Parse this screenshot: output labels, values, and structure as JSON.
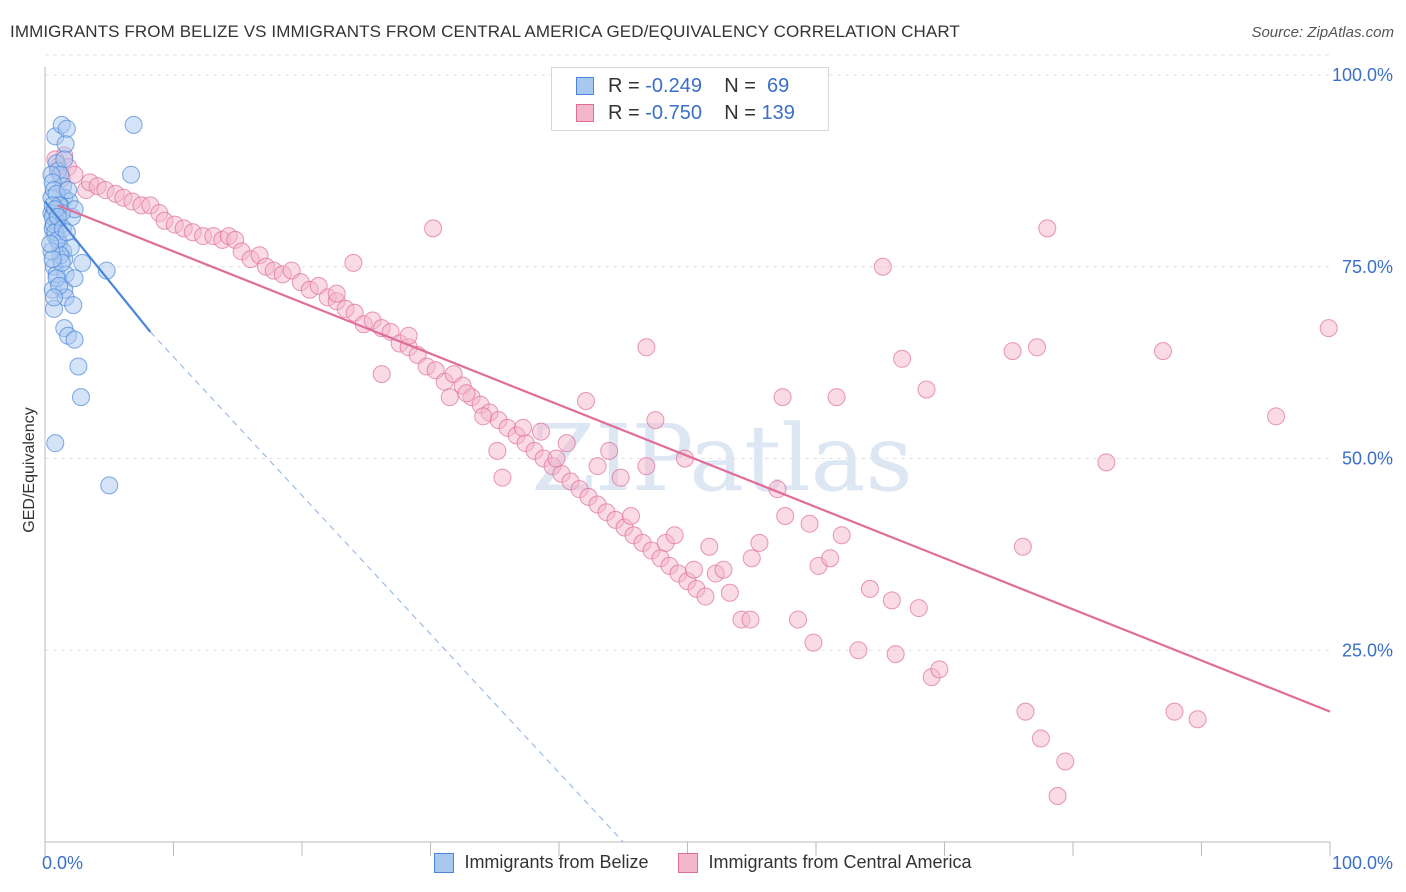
{
  "title": "IMMIGRANTS FROM BELIZE VS IMMIGRANTS FROM CENTRAL AMERICA GED/EQUIVALENCY CORRELATION CHART",
  "source": "Source: ZipAtlas.com",
  "watermark": "ZIPatlas",
  "colors": {
    "blue": "#4a86d8",
    "blue_fill": "#a9c8f0",
    "pink": "#e06c98",
    "pink_fill": "#f4b6cb",
    "tick_text": "#3a6fc8"
  },
  "legend": {
    "rows": [
      {
        "r_label": "R = ",
        "r_value": "-0.249",
        "n_label": "N = ",
        "n_value": "69"
      },
      {
        "r_label": "R = ",
        "r_value": "-0.750",
        "n_label": "N = ",
        "n_value": "139"
      }
    ]
  },
  "chart_data": {
    "type": "scatter",
    "title": "IMMIGRANTS FROM BELIZE VS IMMIGRANTS FROM CENTRAL AMERICA GED/EQUIVALENCY CORRELATION CHART",
    "xlabel": "",
    "ylabel": "GED/Equivalency",
    "xlim": [
      0,
      100
    ],
    "ylim": [
      0,
      100
    ],
    "x_tick_labels": [
      "0.0%",
      "100.0%"
    ],
    "y_ticks": [
      25,
      50,
      75,
      100
    ],
    "y_tick_labels": [
      "25.0%",
      "50.0%",
      "75.0%",
      "100.0%"
    ],
    "legend_position": "bottom",
    "series": [
      {
        "name": "Immigrants from Belize",
        "r": -0.249,
        "n": 69,
        "trend": {
          "x": [
            0,
            8.2
          ],
          "y": [
            83.5,
            66.5
          ],
          "dashed_to": [
            45,
            0
          ]
        },
        "points": [
          [
            0.8,
            92
          ],
          [
            0.9,
            88.5
          ],
          [
            1.0,
            87.5
          ],
          [
            1.3,
            93.5
          ],
          [
            1.6,
            91
          ],
          [
            1.7,
            93
          ],
          [
            1.5,
            89
          ],
          [
            1.2,
            87
          ],
          [
            6.7,
            87
          ],
          [
            6.9,
            93.5
          ],
          [
            1.4,
            85.5
          ],
          [
            1.5,
            84
          ],
          [
            1.9,
            83.5
          ],
          [
            0.5,
            84
          ],
          [
            0.7,
            82
          ],
          [
            0.9,
            81
          ],
          [
            1.0,
            80
          ],
          [
            1.2,
            83
          ],
          [
            0.6,
            80
          ],
          [
            0.8,
            79
          ],
          [
            1.1,
            78
          ],
          [
            1.4,
            77
          ],
          [
            1.5,
            76
          ],
          [
            0.7,
            75
          ],
          [
            0.9,
            74
          ],
          [
            1.6,
            74
          ],
          [
            2.1,
            81.5
          ],
          [
            2.3,
            82.5
          ],
          [
            2.0,
            77.5
          ],
          [
            2.9,
            75.5
          ],
          [
            4.8,
            74.5
          ],
          [
            0.6,
            72
          ],
          [
            1.5,
            72
          ],
          [
            1.6,
            71
          ],
          [
            2.2,
            70
          ],
          [
            0.7,
            69.5
          ],
          [
            2.3,
            73.5
          ],
          [
            1.5,
            67
          ],
          [
            1.8,
            66
          ],
          [
            2.3,
            65.5
          ],
          [
            2.6,
            62
          ],
          [
            2.8,
            58
          ],
          [
            0.8,
            52
          ],
          [
            5.0,
            46.5
          ],
          [
            0.5,
            87
          ],
          [
            0.6,
            86
          ],
          [
            0.7,
            85
          ],
          [
            0.9,
            84.5
          ],
          [
            1.1,
            83
          ],
          [
            0.5,
            82
          ],
          [
            0.6,
            81.5
          ],
          [
            0.7,
            80.5
          ],
          [
            0.8,
            79.5
          ],
          [
            1.0,
            78.5
          ],
          [
            1.2,
            76.5
          ],
          [
            1.3,
            75.5
          ],
          [
            0.5,
            77
          ],
          [
            0.6,
            76
          ],
          [
            0.9,
            73.5
          ],
          [
            1.8,
            85
          ],
          [
            1.3,
            82
          ],
          [
            0.6,
            83
          ],
          [
            0.8,
            82.5
          ],
          [
            1.0,
            81.5
          ],
          [
            1.4,
            80
          ],
          [
            1.7,
            79.5
          ],
          [
            0.4,
            78
          ],
          [
            1.1,
            72.5
          ],
          [
            0.7,
            71
          ]
        ]
      },
      {
        "name": "Immigrants from Central America",
        "r": -0.75,
        "n": 139,
        "trend": {
          "x": [
            1,
            100
          ],
          "y": [
            83,
            17
          ]
        },
        "points": [
          [
            1.0,
            88
          ],
          [
            1.5,
            89.5
          ],
          [
            1.8,
            88
          ],
          [
            2.3,
            87
          ],
          [
            0.8,
            89
          ],
          [
            1.3,
            86.5
          ],
          [
            3.2,
            85
          ],
          [
            3.5,
            86
          ],
          [
            4.1,
            85.5
          ],
          [
            4.7,
            85
          ],
          [
            5.5,
            84.5
          ],
          [
            6.1,
            84
          ],
          [
            6.8,
            83.5
          ],
          [
            7.5,
            83
          ],
          [
            8.2,
            83
          ],
          [
            8.9,
            82
          ],
          [
            9.3,
            81
          ],
          [
            10.1,
            80.5
          ],
          [
            10.8,
            80
          ],
          [
            11.5,
            79.5
          ],
          [
            12.3,
            79
          ],
          [
            13.1,
            79
          ],
          [
            13.8,
            78.5
          ],
          [
            14.3,
            79
          ],
          [
            14.8,
            78.5
          ],
          [
            15.3,
            77
          ],
          [
            16.0,
            76
          ],
          [
            16.7,
            76.5
          ],
          [
            17.2,
            75
          ],
          [
            17.8,
            74.5
          ],
          [
            18.5,
            74
          ],
          [
            19.2,
            74.5
          ],
          [
            19.9,
            73
          ],
          [
            20.6,
            72
          ],
          [
            21.3,
            72.5
          ],
          [
            22.0,
            71
          ],
          [
            22.7,
            70.5
          ],
          [
            23.4,
            69.5
          ],
          [
            24.1,
            69
          ],
          [
            24.8,
            67.5
          ],
          [
            25.5,
            68
          ],
          [
            26.2,
            67
          ],
          [
            26.9,
            66.5
          ],
          [
            27.6,
            65
          ],
          [
            28.3,
            64.5
          ],
          [
            29.0,
            63.5
          ],
          [
            29.7,
            62
          ],
          [
            30.4,
            61.5
          ],
          [
            31.1,
            60
          ],
          [
            31.8,
            61
          ],
          [
            32.5,
            59.5
          ],
          [
            33.2,
            58
          ],
          [
            33.9,
            57
          ],
          [
            34.6,
            56
          ],
          [
            35.3,
            55
          ],
          [
            36.0,
            54
          ],
          [
            36.7,
            53
          ],
          [
            37.4,
            52
          ],
          [
            38.1,
            51
          ],
          [
            38.8,
            50
          ],
          [
            39.5,
            49
          ],
          [
            40.2,
            48
          ],
          [
            40.9,
            47
          ],
          [
            41.6,
            46
          ],
          [
            42.3,
            45
          ],
          [
            43.0,
            44
          ],
          [
            43.7,
            43
          ],
          [
            44.4,
            42
          ],
          [
            45.1,
            41
          ],
          [
            45.8,
            40
          ],
          [
            46.5,
            39
          ],
          [
            47.2,
            38
          ],
          [
            47.9,
            37
          ],
          [
            48.6,
            36
          ],
          [
            49.3,
            35
          ],
          [
            50.0,
            34
          ],
          [
            50.7,
            33
          ],
          [
            51.4,
            32
          ],
          [
            24.0,
            75.5
          ],
          [
            22.7,
            71.5
          ],
          [
            26.2,
            61
          ],
          [
            28.3,
            66
          ],
          [
            31.5,
            58
          ],
          [
            32.8,
            58.5
          ],
          [
            34.1,
            55.5
          ],
          [
            35.2,
            51
          ],
          [
            35.6,
            47.5
          ],
          [
            37.2,
            54
          ],
          [
            38.6,
            53.5
          ],
          [
            39.8,
            50
          ],
          [
            40.6,
            52
          ],
          [
            42.1,
            57.5
          ],
          [
            43.0,
            49
          ],
          [
            43.9,
            51
          ],
          [
            44.8,
            47.5
          ],
          [
            45.6,
            42.5
          ],
          [
            46.8,
            49
          ],
          [
            47.5,
            55
          ],
          [
            48.3,
            39
          ],
          [
            49.0,
            40
          ],
          [
            49.8,
            50
          ],
          [
            50.5,
            35.5
          ],
          [
            51.7,
            38.5
          ],
          [
            52.2,
            35
          ],
          [
            52.8,
            35.5
          ],
          [
            53.3,
            32.5
          ],
          [
            54.2,
            29
          ],
          [
            55.6,
            39
          ],
          [
            55.0,
            37
          ],
          [
            57.0,
            46
          ],
          [
            57.6,
            42.5
          ],
          [
            58.6,
            29
          ],
          [
            59.5,
            41.5
          ],
          [
            60.2,
            36
          ],
          [
            61.1,
            37
          ],
          [
            61.6,
            58
          ],
          [
            62.0,
            40
          ],
          [
            63.3,
            25
          ],
          [
            64.2,
            33
          ],
          [
            65.2,
            75
          ],
          [
            65.9,
            31.5
          ],
          [
            66.2,
            24.5
          ],
          [
            66.7,
            63
          ],
          [
            68.0,
            30.5
          ],
          [
            68.6,
            59
          ],
          [
            69.0,
            21.5
          ],
          [
            69.6,
            22.5
          ],
          [
            75.3,
            64
          ],
          [
            76.1,
            38.5
          ],
          [
            77.2,
            64.5
          ],
          [
            78.0,
            80
          ],
          [
            76.3,
            17
          ],
          [
            77.5,
            13.5
          ],
          [
            79.4,
            10.5
          ],
          [
            78.8,
            6
          ],
          [
            82.6,
            49.5
          ],
          [
            87.0,
            64
          ],
          [
            87.9,
            17
          ],
          [
            89.7,
            16
          ],
          [
            95.8,
            55.5
          ],
          [
            99.9,
            67
          ],
          [
            59.8,
            26
          ],
          [
            54.9,
            29
          ],
          [
            46.8,
            64.5
          ],
          [
            57.4,
            58
          ],
          [
            30.2,
            80
          ]
        ]
      }
    ]
  },
  "bottom_legend": [
    {
      "label": "Immigrants from Belize"
    },
    {
      "label": "Immigrants from Central America"
    }
  ]
}
